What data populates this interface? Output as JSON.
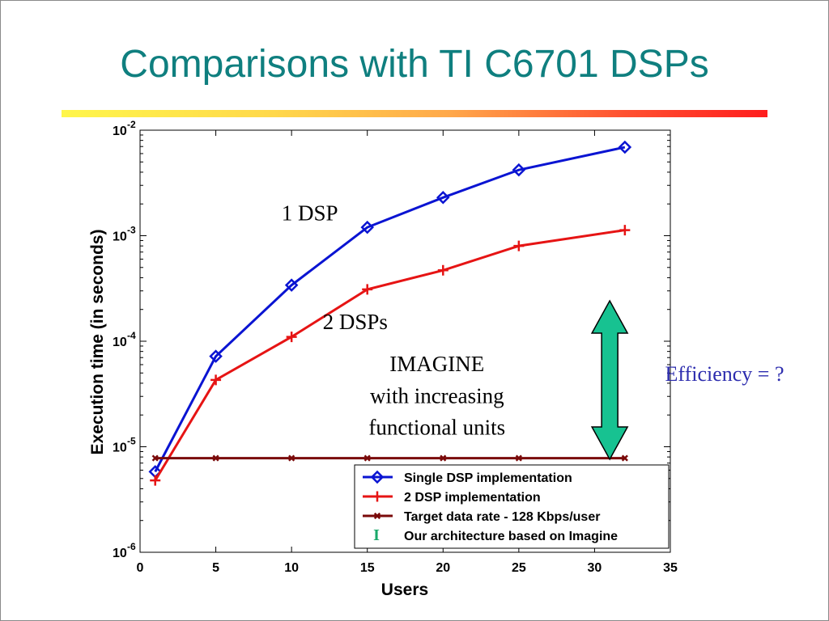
{
  "slide": {
    "title": "Comparisons with TI C6701 DSPs",
    "efficiency_label": "Efficiency = ?",
    "accent_title": "#0f7f7f",
    "accent_efficiency": "#2c2cae"
  },
  "chart_data": {
    "type": "line",
    "xlabel": "Users",
    "ylabel": "Execution time (in seconds)",
    "yscale": "log",
    "xlim": [
      0,
      35
    ],
    "ylim": [
      1e-06,
      0.01
    ],
    "x_ticks": [
      "0",
      "5",
      "10",
      "15",
      "20",
      "25",
      "30",
      "35"
    ],
    "y_ticks": [
      {
        "base": "10",
        "exp": "-6",
        "value": 1e-06
      },
      {
        "base": "10",
        "exp": "-5",
        "value": 1e-05
      },
      {
        "base": "10",
        "exp": "-4",
        "value": 0.0001
      },
      {
        "base": "10",
        "exp": "-3",
        "value": 0.001
      },
      {
        "base": "10",
        "exp": "-2",
        "value": 0.01
      }
    ],
    "grid": false,
    "legend_position": "bottom-right",
    "series": [
      {
        "name": "Single DSP implementation",
        "color": "#0a14d2",
        "marker": "diamond",
        "x": [
          1,
          5,
          10,
          15,
          20,
          25,
          32
        ],
        "y": [
          5.8e-06,
          7.2e-05,
          0.00034,
          0.0012,
          0.0023,
          0.0042,
          0.0069
        ]
      },
      {
        "name": "2 DSP implementation",
        "color": "#e61414",
        "marker": "plus",
        "x": [
          1,
          5,
          10,
          15,
          20,
          25,
          32
        ],
        "y": [
          4.8e-06,
          4.3e-05,
          0.00011,
          0.00031,
          0.00047,
          0.0008,
          0.00113
        ]
      },
      {
        "name": "Target data rate - 128 Kbps/user",
        "color": "#7a0a0a",
        "marker": "x",
        "x": [
          1,
          5,
          10,
          15,
          20,
          25,
          32
        ],
        "y": [
          7.8e-06,
          7.8e-06,
          7.8e-06,
          7.8e-06,
          7.8e-06,
          7.8e-06,
          7.8e-06
        ]
      }
    ],
    "legend_extra": {
      "symbol": "I",
      "label": "Our architecture based on Imagine",
      "color": "#1aa86a"
    },
    "annotations": [
      {
        "text": "1 DSP",
        "x": 11.2,
        "y": 0.0014
      },
      {
        "text": "2 DSPs",
        "x": 14.2,
        "y": 0.00013
      },
      {
        "text": "IMAGINE",
        "x": 19.6,
        "y": 5.2e-05
      },
      {
        "text": "with increasing",
        "x": 19.6,
        "y": 2.6e-05
      },
      {
        "text": "functional units",
        "x": 19.6,
        "y": 1.3e-05
      }
    ],
    "arrow": {
      "x": 31,
      "y_top": 1.3e-06,
      "y_bottom": 7.8e-06,
      "color": "#17c291"
    }
  }
}
